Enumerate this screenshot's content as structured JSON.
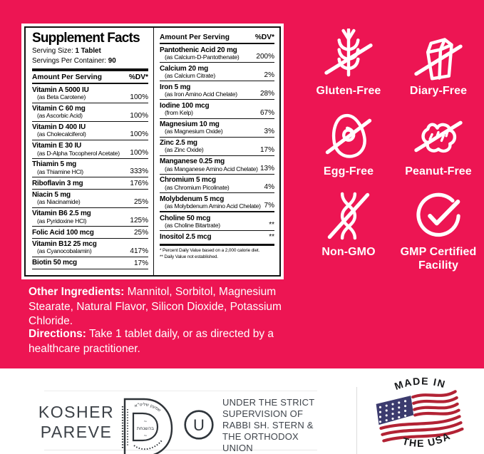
{
  "colors": {
    "background_pink": "#ED1553",
    "panel_border": "#111111",
    "panel_background": "#FFFFFF",
    "badge_white": "#FFFFFF",
    "footer_text": "#3F444B",
    "flag_red": "#B22234",
    "flag_navy": "#3C3B6E"
  },
  "supplement_facts": {
    "title": "Supplement Facts",
    "serving_size_label": "Serving Size:",
    "serving_size_value": "1 Tablet",
    "servings_per_container_label": "Servings Per Container:",
    "servings_per_container_value": "90",
    "amount_header": "Amount Per Serving",
    "dv_header": "%DV*",
    "left_rows": [
      {
        "name": "Vitamin A 5000 IU",
        "sub": "(as Beta Carotene)",
        "dv": "100%"
      },
      {
        "name": "Vitamin C 60 mg",
        "sub": "(as Ascorbic Acid)",
        "dv": "100%"
      },
      {
        "name": "Vitamin D 400 IU",
        "sub": "(as Cholecalciferol)",
        "dv": "100%"
      },
      {
        "name": "Vitamin E 30 IU",
        "sub": "(as D-Alpha Tocopherol Acetate)",
        "dv": "100%"
      },
      {
        "name": "Thiamin 5 mg",
        "sub": "(as Thiamine HCl)",
        "dv": "333%"
      },
      {
        "name": "Riboflavin 3 mg",
        "dv": "176%"
      },
      {
        "name": "Niacin 5 mg",
        "sub": "(as Niacinamide)",
        "dv": "25%"
      },
      {
        "name": "Vitamin B6 2.5 mg",
        "sub": "(as Pyridoxine HCl)",
        "dv": "125%"
      },
      {
        "name": "Folic Acid 100 mcg",
        "dv": "25%"
      },
      {
        "name": "Vitamin B12 25 mcg",
        "sub": "(as Cyanocobalamin)",
        "dv": "417%"
      },
      {
        "name": "Biotin 50 mcg",
        "dv": "17%"
      }
    ],
    "right_rows": [
      {
        "name": "Pantothenic Acid 20 mg",
        "sub": "(as Calcium-D-Pantothenate)",
        "dv": "200%"
      },
      {
        "name": "Calcium 20 mg",
        "sub": "(as Calcium Citrate)",
        "dv": "2%"
      },
      {
        "name": "Iron 5 mg",
        "sub": "(as Iron Amino Acid Chelate)",
        "dv": "28%"
      },
      {
        "name": "Iodine 100 mcg",
        "sub": "(from Kelp)",
        "dv": "67%"
      },
      {
        "name": "Magnesium 10 mg",
        "sub": "(as Magnesium Oxide)",
        "dv": "3%"
      },
      {
        "name": "Zinc 2.5 mg",
        "sub": "(as Zinc Oxide)",
        "dv": "17%"
      },
      {
        "name": "Manganese 0.25 mg",
        "sub": "(as Manganese Amino Acid Chelate)",
        "dv": "13%"
      },
      {
        "name": "Chromium 5 mcg",
        "sub": "(as Chromium Picolinate)",
        "dv": "4%"
      },
      {
        "name": "Molybdenum 5 mcg",
        "sub": "(as Molybdenum Amino Acid Chelate)",
        "dv": "7%"
      },
      {
        "name": "Choline 50 mcg",
        "sub": "(as Choline Bitartrate)",
        "dv": "**"
      },
      {
        "name": "Inositol 2.5 mcg",
        "dv": "**"
      }
    ],
    "footnote_line1": "*  Percent Daily Value based on a 2,000 calorie diet.",
    "footnote_line2": "** Daily Value not established."
  },
  "badges": [
    {
      "label": "Gluten-Free",
      "icon": "wheat-crossed"
    },
    {
      "label": "Diary-Free",
      "icon": "milk-carton-crossed"
    },
    {
      "label": "Egg-Free",
      "icon": "egg-crossed"
    },
    {
      "label": "Peanut-Free",
      "icon": "peanut-crossed"
    },
    {
      "label": "Non-GMO",
      "icon": "dna-crossed"
    },
    {
      "label": "GMP Certified Facility",
      "icon": "gmp-check-circle"
    }
  ],
  "other_ingredients": {
    "label": "Other Ingredients:",
    "text": "Mannitol, Sorbitol, Magnesium Stearate, Natural Flavor, Silicon Dioxide, Potassium Chloride."
  },
  "directions": {
    "label": "Directions:",
    "text": "Take 1 tablet daily, or as directed by a healthcare practitioner."
  },
  "footer": {
    "kosher_line1": "KOSHER",
    "kosher_line2": "PAREVE",
    "seal_top_hebrew": "שמעון שליט\"א",
    "seal_center_hebrew": "בהשגחת",
    "ou_letter": "U",
    "supervision_text": "UNDER THE STRICT SUPERVISION OF RABBI SH. STERN & THE ORTHODOX UNION",
    "made_in_top": "MADE IN",
    "made_in_bottom": "THE USA"
  }
}
